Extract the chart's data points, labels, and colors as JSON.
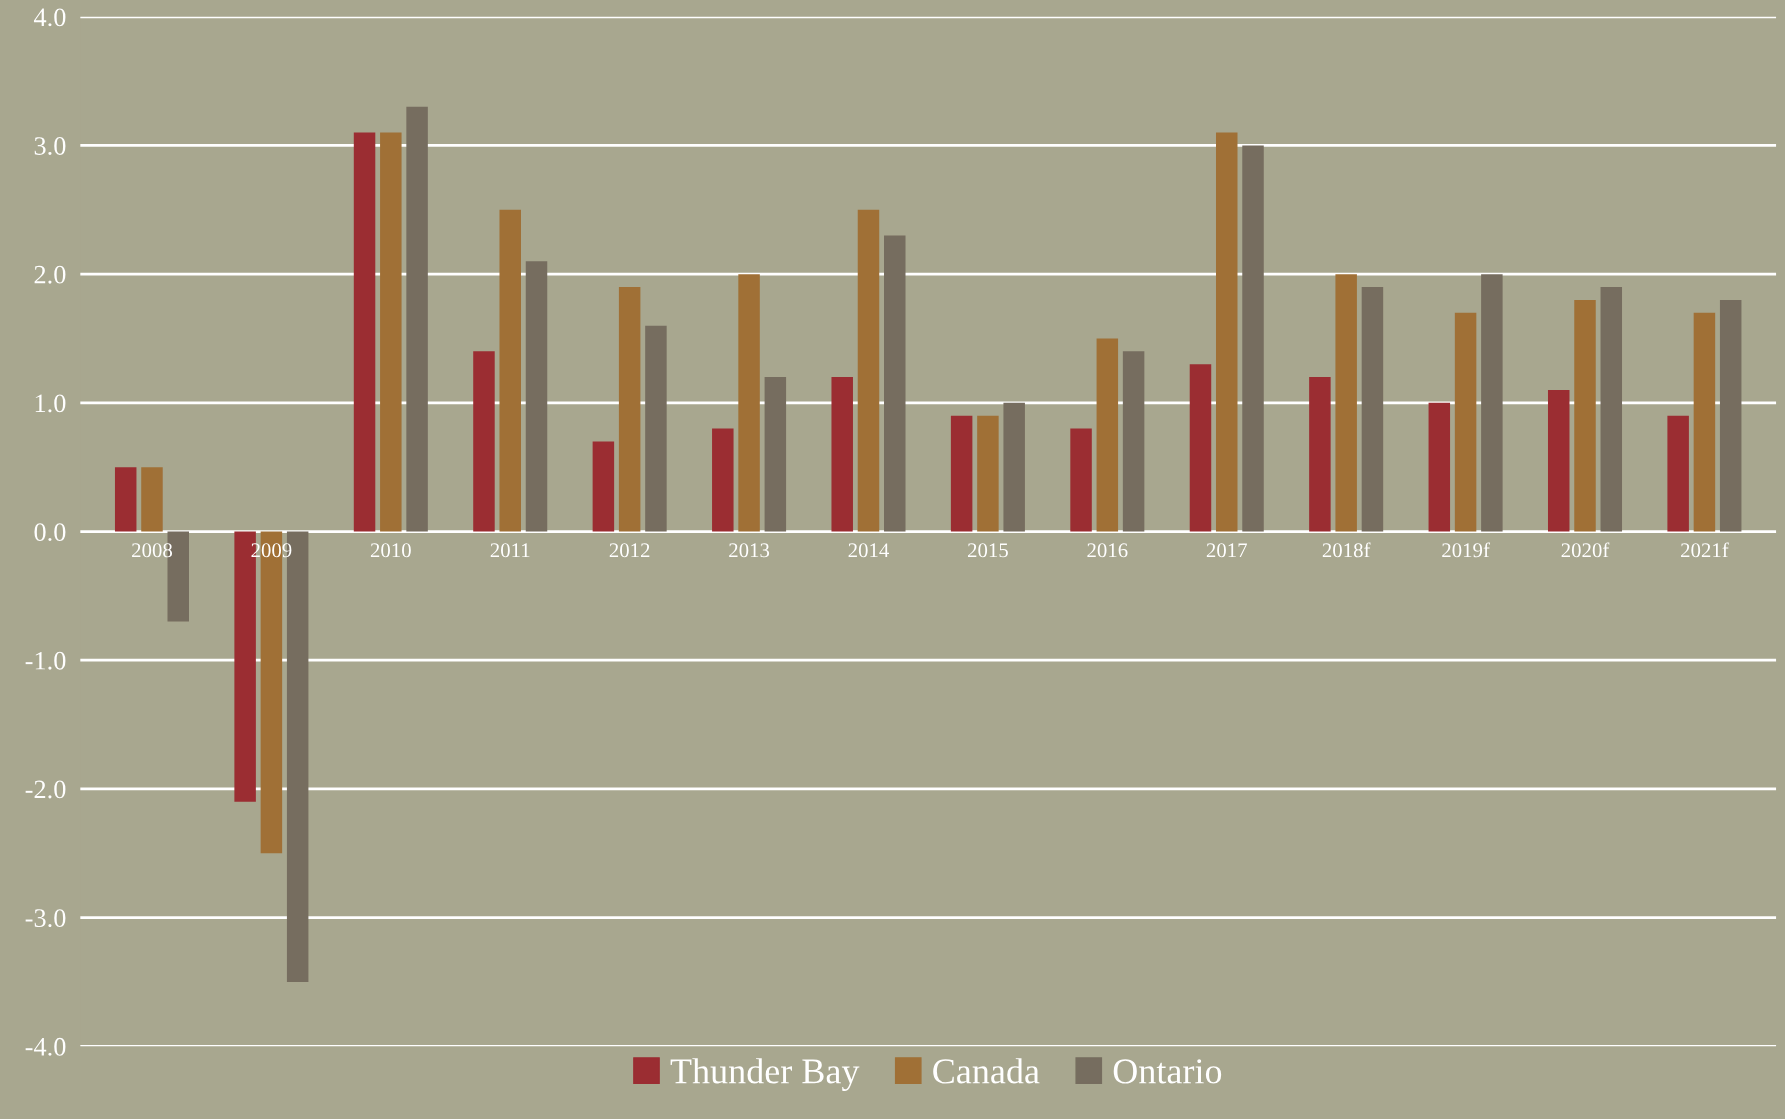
{
  "chart_data": {
    "type": "bar",
    "categories": [
      "2008",
      "2009",
      "2010",
      "2011",
      "2012",
      "2013",
      "2014",
      "2015",
      "2016",
      "2017",
      "2018f",
      "2019f",
      "2020f",
      "2021f"
    ],
    "series": [
      {
        "name": "Thunder Bay",
        "color": "#9b2d32",
        "values": [
          0.5,
          -2.1,
          3.1,
          1.4,
          0.7,
          0.8,
          1.2,
          0.9,
          0.8,
          1.3,
          1.2,
          1.0,
          1.1,
          0.9
        ]
      },
      {
        "name": "Canada",
        "color": "#a07036",
        "values": [
          0.5,
          -2.5,
          3.1,
          2.5,
          1.9,
          2.0,
          2.5,
          0.9,
          1.5,
          3.1,
          2.0,
          1.7,
          1.8,
          1.7
        ]
      },
      {
        "name": "Ontario",
        "color": "#766d5f",
        "values": [
          -0.7,
          -3.5,
          3.3,
          2.1,
          1.6,
          1.2,
          2.3,
          1.0,
          1.4,
          3.0,
          1.9,
          2.0,
          1.9,
          1.8
        ]
      }
    ],
    "ylim": [
      -4,
      4
    ],
    "yticks": [
      {
        "value": -4,
        "label": "-4.0"
      },
      {
        "value": -3,
        "label": "-3.0"
      },
      {
        "value": -2,
        "label": "-2.0"
      },
      {
        "value": -1,
        "label": "-1.0"
      },
      {
        "value": 0,
        "label": "0.0"
      },
      {
        "value": 1,
        "label": "1.0"
      },
      {
        "value": 2,
        "label": "2.0"
      },
      {
        "value": 3,
        "label": "3.0"
      },
      {
        "value": 4,
        "label": "4.0"
      }
    ],
    "grid": "y",
    "legend": "bottom"
  }
}
